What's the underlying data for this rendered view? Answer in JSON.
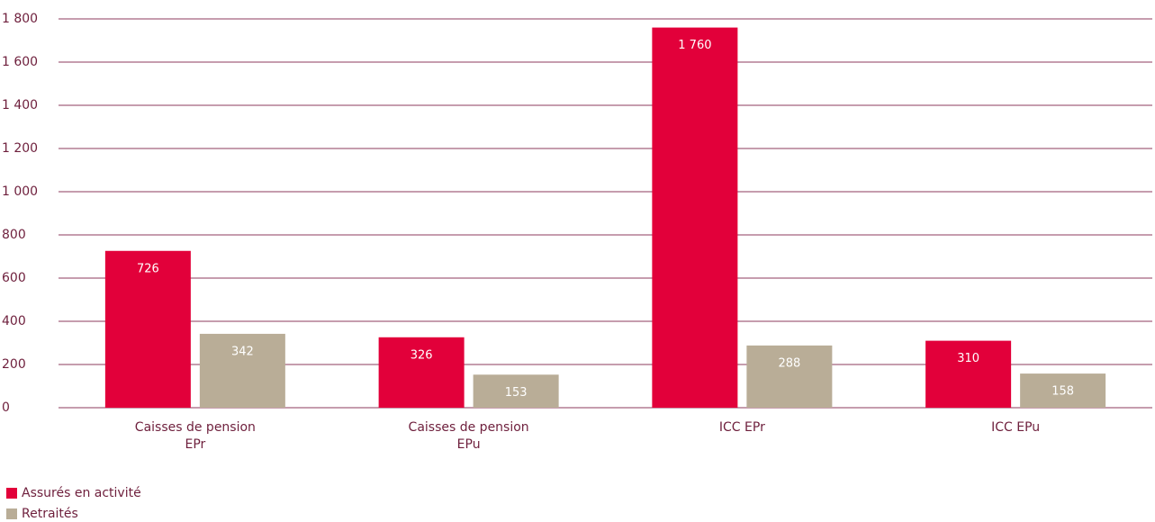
{
  "chart_data": {
    "type": "bar",
    "categories": [
      "Caisses de pension\nEPr",
      "Caisses de pension\nEPu",
      "ICC EPr",
      "ICC EPu"
    ],
    "series": [
      {
        "name": "Assurés en activité",
        "color": "#e2003a",
        "values": [
          726,
          326,
          1760,
          310
        ],
        "value_labels": [
          "726",
          "326",
          "1 760",
          "310"
        ]
      },
      {
        "name": "Retraités",
        "color": "#b9ad97",
        "values": [
          342,
          153,
          288,
          158
        ]
      }
    ],
    "ylim": [
      0,
      1800
    ],
    "yticks": [
      0,
      200,
      400,
      600,
      800,
      {
        "value": 1000,
        "label": "1 000"
      },
      {
        "value": 1200,
        "label": "1 200"
      },
      {
        "value": 1400,
        "label": "1 400"
      },
      {
        "value": 1600,
        "label": "1 600"
      },
      {
        "value": 1800,
        "label": "1 800"
      }
    ],
    "grid": true
  }
}
